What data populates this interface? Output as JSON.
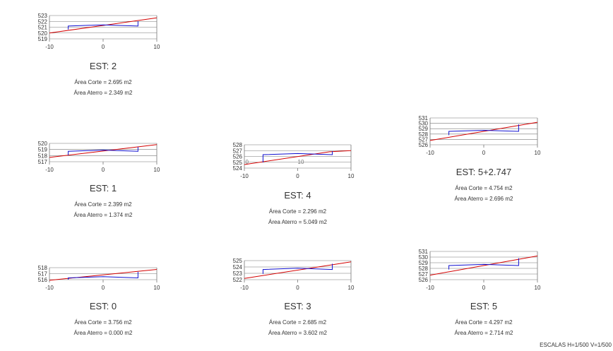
{
  "colors": {
    "terrain": "#d40000",
    "section": "#1010d0",
    "grid": "#777777",
    "text": "#333333"
  },
  "footer": {
    "scale_label": "ESCALAS H=1/500 V=1/500"
  },
  "sections": [
    {
      "id": "est-2",
      "title": "EST: 2",
      "area_cut_label": "Área Corte = 2.695 m2",
      "area_fill_label": "Área Aterro = 2.349 m2",
      "x_range": [
        -10,
        10
      ],
      "x_ticks": [
        -10,
        0,
        10
      ],
      "y_range": [
        519,
        523
      ],
      "y_ticks": [
        519,
        520,
        521,
        522,
        523
      ],
      "terrain": [
        [
          -10,
          520.0
        ],
        [
          10,
          522.6
        ]
      ],
      "section": [
        [
          -6.5,
          520.6
        ],
        [
          -6.5,
          521.2
        ],
        [
          0,
          521.4
        ],
        [
          6.5,
          521.2
        ],
        [
          6.5,
          522.0
        ]
      ],
      "inner_labels": []
    },
    {
      "id": "est-1",
      "title": "EST: 1",
      "area_cut_label": "Área Corte = 2.399 m2",
      "area_fill_label": "Área Aterro = 1.374 m2",
      "x_range": [
        -10,
        10
      ],
      "x_ticks": [
        -10,
        0,
        10
      ],
      "y_range": [
        517,
        520
      ],
      "y_ticks": [
        517,
        518,
        519,
        520
      ],
      "terrain": [
        [
          -10,
          517.7
        ],
        [
          10,
          519.8
        ]
      ],
      "section": [
        [
          -6.5,
          518.1
        ],
        [
          -6.5,
          518.7
        ],
        [
          0,
          518.9
        ],
        [
          6.5,
          518.7
        ],
        [
          6.5,
          519.4
        ]
      ],
      "inner_labels": []
    },
    {
      "id": "est-4",
      "title": "EST: 4",
      "area_cut_label": "Área Corte = 2.296 m2",
      "area_fill_label": "Área Aterro = 5.049 m2",
      "x_range": [
        -10,
        10
      ],
      "x_ticks": [
        -10,
        0,
        10
      ],
      "y_range": [
        524,
        528
      ],
      "y_ticks": [
        524,
        525,
        526,
        527,
        528
      ],
      "terrain": [
        [
          -10,
          524.6
        ],
        [
          6,
          526.8
        ],
        [
          10,
          527.0
        ]
      ],
      "section": [
        [
          -6.5,
          525.0
        ],
        [
          -6.5,
          526.3
        ],
        [
          0,
          526.5
        ],
        [
          6.5,
          526.3
        ],
        [
          6.5,
          526.9
        ]
      ],
      "inner_labels": [
        {
          "text": "0",
          "x": -9.8,
          "y": 524.7
        },
        {
          "text": "10",
          "x": 0,
          "y": 524.7
        }
      ]
    },
    {
      "id": "est-5-2747",
      "title": "EST: 5+2.747",
      "area_cut_label": "Área Corte = 4.754 m2",
      "area_fill_label": "Área Aterro = 2.696 m2",
      "x_range": [
        -10,
        10
      ],
      "x_ticks": [
        -10,
        0,
        10
      ],
      "y_range": [
        526,
        531
      ],
      "y_ticks": [
        526,
        527,
        528,
        529,
        530,
        531
      ],
      "terrain": [
        [
          -10,
          526.8
        ],
        [
          10,
          530.2
        ]
      ],
      "section": [
        [
          -6.5,
          527.8
        ],
        [
          -6.5,
          528.5
        ],
        [
          0,
          528.7
        ],
        [
          6.5,
          528.5
        ],
        [
          6.5,
          529.8
        ]
      ],
      "inner_labels": []
    },
    {
      "id": "est-0",
      "title": "EST: 0",
      "area_cut_label": "Área Corte = 3.756 m2",
      "area_fill_label": "Área Aterro = 0.000 m2",
      "x_range": [
        -10,
        10
      ],
      "x_ticks": [
        -10,
        0,
        10
      ],
      "y_range": [
        516,
        518
      ],
      "y_ticks": [
        516,
        517,
        518
      ],
      "terrain": [
        [
          -10,
          515.9
        ],
        [
          10,
          517.7
        ]
      ],
      "section": [
        [
          -6.5,
          516.0
        ],
        [
          -6.5,
          516.3
        ],
        [
          0,
          516.5
        ],
        [
          6.5,
          516.3
        ],
        [
          6.5,
          517.3
        ]
      ],
      "inner_labels": []
    },
    {
      "id": "est-3",
      "title": "EST: 3",
      "area_cut_label": "Área Corte = 2.685 m2",
      "area_fill_label": "Área Aterro = 3.602 m2",
      "x_range": [
        -10,
        10
      ],
      "x_ticks": [
        -10,
        0,
        10
      ],
      "y_range": [
        522,
        525
      ],
      "y_ticks": [
        522,
        523,
        524,
        525
      ],
      "terrain": [
        [
          -10,
          522.2
        ],
        [
          10,
          524.8
        ]
      ],
      "section": [
        [
          -6.5,
          522.9
        ],
        [
          -6.5,
          523.6
        ],
        [
          0,
          523.8
        ],
        [
          6.5,
          523.6
        ],
        [
          6.5,
          524.5
        ]
      ],
      "inner_labels": []
    },
    {
      "id": "est-5",
      "title": "EST: 5",
      "area_cut_label": "Área Corte = 4.297 m2",
      "area_fill_label": "Área Aterro = 2.714 m2",
      "x_range": [
        -10,
        10
      ],
      "x_ticks": [
        -10,
        0,
        10
      ],
      "y_range": [
        526,
        531
      ],
      "y_ticks": [
        526,
        527,
        528,
        529,
        530,
        531
      ],
      "terrain": [
        [
          -10,
          526.8
        ],
        [
          10,
          530.2
        ]
      ],
      "section": [
        [
          -6.5,
          527.8
        ],
        [
          -6.5,
          528.5
        ],
        [
          0,
          528.7
        ],
        [
          6.5,
          528.5
        ],
        [
          6.5,
          529.8
        ]
      ],
      "inner_labels": []
    }
  ]
}
